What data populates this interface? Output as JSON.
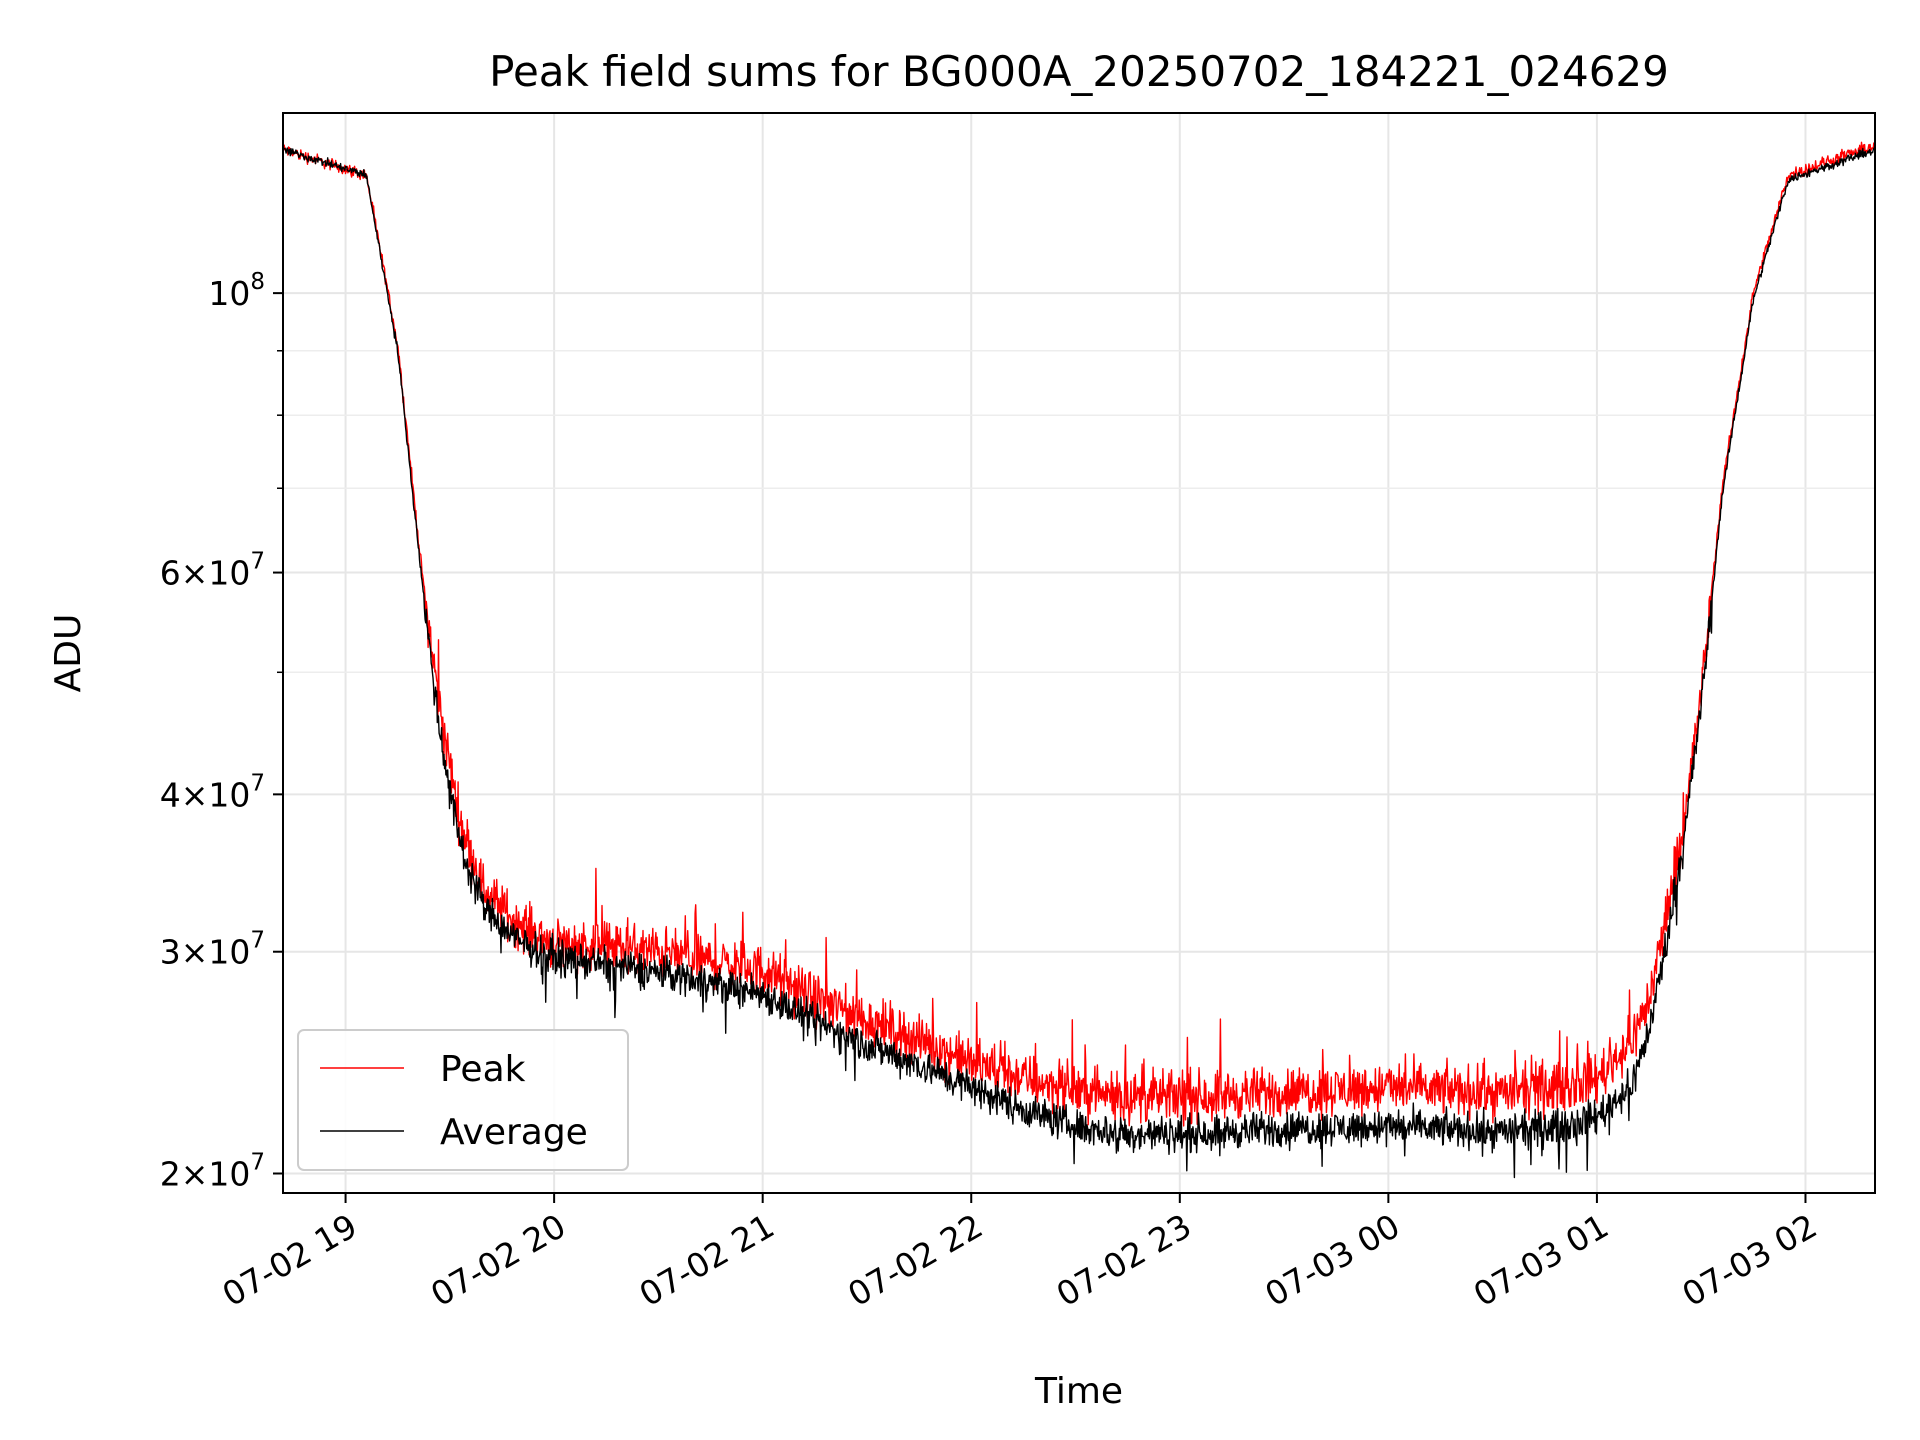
{
  "chart_data": {
    "type": "line",
    "title": "Peak field sums for BG000A_20250702_184221_024629",
    "xlabel": "Time",
    "ylabel": "ADU",
    "yscale": "log",
    "xlim": [
      "2025-07-02 18:42",
      "2025-07-03 02:20"
    ],
    "ylim": [
      19300000,
      139000000
    ],
    "grid": true,
    "legend_position": "lower-left",
    "x_ticks": [
      {
        "value": "2025-07-02 19:00",
        "label": "07-02 19"
      },
      {
        "value": "2025-07-02 20:00",
        "label": "07-02 20"
      },
      {
        "value": "2025-07-02 21:00",
        "label": "07-02 21"
      },
      {
        "value": "2025-07-02 22:00",
        "label": "07-02 22"
      },
      {
        "value": "2025-07-02 23:00",
        "label": "07-02 23"
      },
      {
        "value": "2025-07-03 00:00",
        "label": "07-03 00"
      },
      {
        "value": "2025-07-03 01:00",
        "label": "07-03 01"
      },
      {
        "value": "2025-07-03 02:00",
        "label": "07-03 02"
      }
    ],
    "y_ticks": [
      {
        "value": 20000000,
        "mantissa": "2",
        "exponent": "7"
      },
      {
        "value": 30000000,
        "mantissa": "3",
        "exponent": "7"
      },
      {
        "value": 40000000,
        "mantissa": "4",
        "exponent": "7"
      },
      {
        "value": 60000000,
        "mantissa": "6",
        "exponent": "7"
      },
      {
        "value": 100000000,
        "mantissa": "",
        "exponent": "8"
      }
    ],
    "y_minor_ticks": [
      50000000,
      70000000,
      80000000,
      90000000
    ],
    "series": [
      {
        "name": "Peak",
        "color": "#ff0000",
        "noise_level": "high",
        "points": [
          [
            "2025-07-02 18:42",
            130000000
          ],
          [
            "2025-07-02 19:06",
            124000000
          ],
          [
            "2025-07-02 19:15",
            91000000
          ],
          [
            "2025-07-02 19:22",
            60000000
          ],
          [
            "2025-07-02 19:27",
            47000000
          ],
          [
            "2025-07-02 19:33",
            38000000
          ],
          [
            "2025-07-02 19:40",
            33500000
          ],
          [
            "2025-07-02 19:50",
            31500000
          ],
          [
            "2025-07-02 20:00",
            30500000
          ],
          [
            "2025-07-02 20:15",
            30300000
          ],
          [
            "2025-07-02 20:30",
            30000000
          ],
          [
            "2025-07-02 20:45",
            29500000
          ],
          [
            "2025-07-02 21:00",
            29000000
          ],
          [
            "2025-07-02 21:15",
            27500000
          ],
          [
            "2025-07-02 21:30",
            26500000
          ],
          [
            "2025-07-02 21:45",
            25500000
          ],
          [
            "2025-07-02 22:00",
            24500000
          ],
          [
            "2025-07-02 22:15",
            23800000
          ],
          [
            "2025-07-02 22:30",
            23300000
          ],
          [
            "2025-07-02 22:45",
            23000000
          ],
          [
            "2025-07-02 23:00",
            23000000
          ],
          [
            "2025-07-02 23:30",
            23200000
          ],
          [
            "2025-07-03 00:00",
            23400000
          ],
          [
            "2025-07-03 00:30",
            23200000
          ],
          [
            "2025-07-03 00:45",
            23300000
          ],
          [
            "2025-07-03 01:00",
            23800000
          ],
          [
            "2025-07-03 01:10",
            25500000
          ],
          [
            "2025-07-03 01:15",
            27500000
          ],
          [
            "2025-07-03 01:20",
            32000000
          ],
          [
            "2025-07-03 01:25",
            38000000
          ],
          [
            "2025-07-03 01:30",
            48000000
          ],
          [
            "2025-07-03 01:36",
            70000000
          ],
          [
            "2025-07-03 01:45",
            100000000
          ],
          [
            "2025-07-03 01:55",
            124000000
          ],
          [
            "2025-07-03 02:20",
            131000000
          ]
        ]
      },
      {
        "name": "Average",
        "color": "#000000",
        "noise_level": "medium",
        "points": [
          [
            "2025-07-02 18:42",
            130000000
          ],
          [
            "2025-07-02 19:06",
            124000000
          ],
          [
            "2025-07-02 19:15",
            90000000
          ],
          [
            "2025-07-02 19:22",
            59000000
          ],
          [
            "2025-07-02 19:27",
            45000000
          ],
          [
            "2025-07-02 19:33",
            36500000
          ],
          [
            "2025-07-02 19:40",
            32500000
          ],
          [
            "2025-07-02 19:50",
            30500000
          ],
          [
            "2025-07-02 20:00",
            29700000
          ],
          [
            "2025-07-02 20:15",
            29300000
          ],
          [
            "2025-07-02 20:30",
            28900000
          ],
          [
            "2025-07-02 20:45",
            28400000
          ],
          [
            "2025-07-02 21:00",
            27800000
          ],
          [
            "2025-07-02 21:15",
            26400000
          ],
          [
            "2025-07-02 21:30",
            25300000
          ],
          [
            "2025-07-02 21:45",
            24400000
          ],
          [
            "2025-07-02 22:00",
            23400000
          ],
          [
            "2025-07-02 22:15",
            22500000
          ],
          [
            "2025-07-02 22:30",
            21800000
          ],
          [
            "2025-07-02 22:45",
            21500000
          ],
          [
            "2025-07-02 23:00",
            21500000
          ],
          [
            "2025-07-02 23:30",
            21700000
          ],
          [
            "2025-07-03 00:00",
            21800000
          ],
          [
            "2025-07-03 00:30",
            21600000
          ],
          [
            "2025-07-03 00:45",
            21700000
          ],
          [
            "2025-07-03 01:00",
            22200000
          ],
          [
            "2025-07-03 01:10",
            23500000
          ],
          [
            "2025-07-03 01:15",
            26000000
          ],
          [
            "2025-07-03 01:20",
            30500000
          ],
          [
            "2025-07-03 01:25",
            37000000
          ],
          [
            "2025-07-03 01:30",
            47000000
          ],
          [
            "2025-07-03 01:36",
            69000000
          ],
          [
            "2025-07-03 01:45",
            99000000
          ],
          [
            "2025-07-03 01:55",
            123000000
          ],
          [
            "2025-07-03 02:20",
            130000000
          ]
        ]
      }
    ]
  }
}
